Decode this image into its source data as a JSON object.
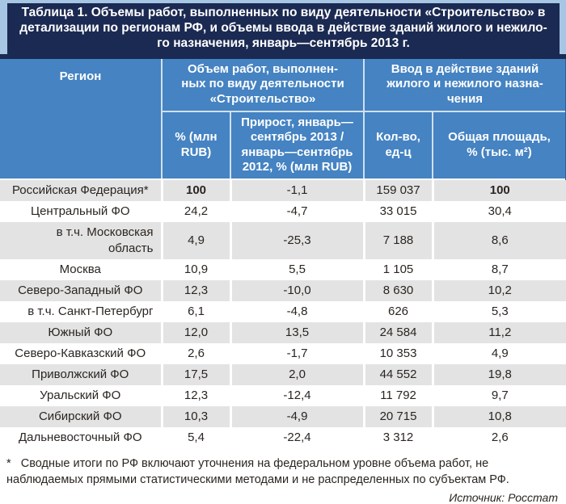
{
  "colors": {
    "title_bg": "#1b2a52",
    "header_bg": "#4583c2",
    "frame": "#a7c6e3",
    "zebra_gray": "#e3e3e3",
    "text": "#2b2521"
  },
  "title": "Таблица 1. Объемы работ, выполненных по виду деятельности «Строительство» в\nдетализации по регионам РФ, и объемы ввода в действие зданий жилого и нежило-\nго назначения, январь—сентябрь 2013 г.",
  "table": {
    "header": {
      "region": "Регион",
      "group_volume": "Объем работ, выполнен-\nных по виду деятельности\n«Строительство»",
      "group_commissioning": "Ввод в действие зданий\nжилого и нежилого назна-\nчения",
      "col_volume_pct": "% (млн\nRUB)",
      "col_growth": "Прирост, январь—\nсентябрь 2013 /\nянварь—сентябрь\n2012, % (млн RUB)",
      "col_count": "Кол-во,\nед-ц",
      "col_area": "Общая площадь,\n% (тыс. м²)"
    },
    "rows": [
      {
        "region": "Российская Федерация*",
        "volume_pct": "100",
        "growth": "-1,1",
        "count": "159 037",
        "area_pct": "100",
        "sub": false,
        "emphasis": true
      },
      {
        "region": "Центральный ФО",
        "volume_pct": "24,2",
        "growth": "-4,7",
        "count": "33 015",
        "area_pct": "30,4",
        "sub": false,
        "emphasis": false
      },
      {
        "region": "в т.ч. Московская\nобласть",
        "volume_pct": "4,9",
        "growth": "-25,3",
        "count": "7 188",
        "area_pct": "8,6",
        "sub": true,
        "emphasis": false
      },
      {
        "region": "Москва",
        "volume_pct": "10,9",
        "growth": "5,5",
        "count": "1 105",
        "area_pct": "8,7",
        "sub": false,
        "emphasis": false
      },
      {
        "region": "Северо-Западный ФО",
        "volume_pct": "12,3",
        "growth": "-10,0",
        "count": "8 630",
        "area_pct": "10,2",
        "sub": false,
        "emphasis": false
      },
      {
        "region": "в т.ч. Санкт-Петербург",
        "volume_pct": "6,1",
        "growth": "-4,8",
        "count": "626",
        "area_pct": "5,3",
        "sub": true,
        "emphasis": false
      },
      {
        "region": "Южный ФО",
        "volume_pct": "12,0",
        "growth": "13,5",
        "count": "24 584",
        "area_pct": "11,2",
        "sub": false,
        "emphasis": false
      },
      {
        "region": "Северо-Кавказский ФО",
        "volume_pct": "2,6",
        "growth": "-1,7",
        "count": "10 353",
        "area_pct": "4,9",
        "sub": false,
        "emphasis": false
      },
      {
        "region": "Приволжский ФО",
        "volume_pct": "17,5",
        "growth": "2,0",
        "count": "44 552",
        "area_pct": "19,8",
        "sub": false,
        "emphasis": false
      },
      {
        "region": "Уральский ФО",
        "volume_pct": "12,3",
        "growth": "-12,4",
        "count": "11 792",
        "area_pct": "9,7",
        "sub": false,
        "emphasis": false
      },
      {
        "region": "Сибирский ФО",
        "volume_pct": "10,3",
        "growth": "-4,9",
        "count": "20 715",
        "area_pct": "10,8",
        "sub": false,
        "emphasis": false
      },
      {
        "region": "Дальневосточный ФО",
        "volume_pct": "5,4",
        "growth": "-22,4",
        "count": "3 312",
        "area_pct": "2,6",
        "sub": false,
        "emphasis": false
      }
    ]
  },
  "footnote": "*   Сводные итоги по РФ включают уточнения на федеральном уровне объема работ, не\nнаблюдаемых прямыми статистическими методами и не распределенных по субъектам РФ.",
  "source": "Источник: Росстат",
  "chart_data": {
    "type": "table",
    "title": "Таблица 1. Объемы работ, выполненных по виду деятельности «Строительство» в детализации по регионам РФ, и объемы ввода в действие зданий жилого и нежилого назначения, январь—сентябрь 2013 г.",
    "columns": [
      "Регион",
      "Объем работ, выполненных по виду деятельности «Строительство» — % (млн RUB)",
      "Объем работ — Прирост, январь—сентябрь 2013 / январь—сентябрь 2012, % (млн RUB)",
      "Ввод в действие зданий жилого и нежилого назначения — Кол-во, ед-ц",
      "Ввод в действие зданий жилого и нежилого назначения — Общая площадь, % (тыс. м²)"
    ],
    "rows": [
      [
        "Российская Федерация*",
        "100",
        "-1,1",
        "159 037",
        "100"
      ],
      [
        "Центральный ФО",
        "24,2",
        "-4,7",
        "33 015",
        "30,4"
      ],
      [
        "в т.ч. Московская область",
        "4,9",
        "-25,3",
        "7 188",
        "8,6"
      ],
      [
        "Москва",
        "10,9",
        "5,5",
        "1 105",
        "8,7"
      ],
      [
        "Северо-Западный ФО",
        "12,3",
        "-10,0",
        "8 630",
        "10,2"
      ],
      [
        "в т.ч. Санкт-Петербург",
        "6,1",
        "-4,8",
        "626",
        "5,3"
      ],
      [
        "Южный ФО",
        "12,0",
        "13,5",
        "24 584",
        "11,2"
      ],
      [
        "Северо-Кавказский ФО",
        "2,6",
        "-1,7",
        "10 353",
        "4,9"
      ],
      [
        "Приволжский ФО",
        "17,5",
        "2,0",
        "44 552",
        "19,8"
      ],
      [
        "Уральский ФО",
        "12,3",
        "-12,4",
        "11 792",
        "9,7"
      ],
      [
        "Сибирский ФО",
        "10,3",
        "-4,9",
        "20 715",
        "10,8"
      ],
      [
        "Дальневосточный ФО",
        "5,4",
        "-22,4",
        "3 312",
        "2,6"
      ]
    ],
    "footnote": "* Сводные итоги по РФ включают уточнения на федеральном уровне объема работ, не наблюдаемых прямыми статистическими методами и не распределенных по субъектам РФ.",
    "source": "Источник: Росстат"
  }
}
